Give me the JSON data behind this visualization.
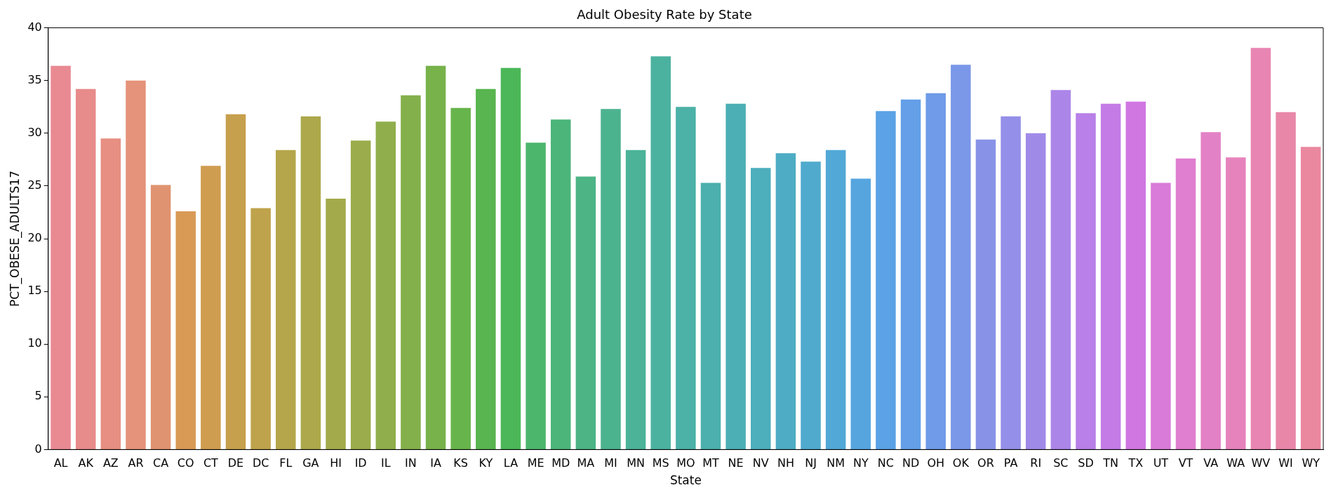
{
  "chart_data": {
    "type": "bar",
    "title": "Adult Obesity Rate by State",
    "xlabel": "State",
    "ylabel": "PCT_OBESE_ADULTS17",
    "categories": [
      "AL",
      "AK",
      "AZ",
      "AR",
      "CA",
      "CO",
      "CT",
      "DE",
      "DC",
      "FL",
      "GA",
      "HI",
      "ID",
      "IL",
      "IN",
      "IA",
      "KS",
      "KY",
      "LA",
      "ME",
      "MD",
      "MA",
      "MI",
      "MN",
      "MS",
      "MO",
      "MT",
      "NE",
      "NV",
      "NH",
      "NJ",
      "NM",
      "NY",
      "NC",
      "ND",
      "OH",
      "OK",
      "OR",
      "PA",
      "RI",
      "SC",
      "SD",
      "TN",
      "TX",
      "UT",
      "VT",
      "VA",
      "WA",
      "WV",
      "WI",
      "WY"
    ],
    "values": [
      36.4,
      34.2,
      29.5,
      35.0,
      25.1,
      22.6,
      26.9,
      31.8,
      22.9,
      28.4,
      31.6,
      23.8,
      29.3,
      31.1,
      33.6,
      36.4,
      32.4,
      34.2,
      36.2,
      29.1,
      31.3,
      25.9,
      32.3,
      28.4,
      37.3,
      32.5,
      25.3,
      32.8,
      26.7,
      28.1,
      27.3,
      28.4,
      25.7,
      32.1,
      33.2,
      33.8,
      36.5,
      29.4,
      31.6,
      30.0,
      34.1,
      31.9,
      32.8,
      33.0,
      25.3,
      27.6,
      30.1,
      27.7,
      38.1,
      32.0,
      28.7
    ],
    "colors": [
      "#e98a93",
      "#e88b8b",
      "#e68f82",
      "#e5937a",
      "#e09370",
      "#d99a56",
      "#cf9d50",
      "#c6a04c",
      "#bea34c",
      "#b5a64b",
      "#aca84b",
      "#a3aa4b",
      "#9aac4b",
      "#90ae4b",
      "#84b04b",
      "#77b24b",
      "#67b44c",
      "#58b54f",
      "#4cb759",
      "#4cb66c",
      "#4cb57a",
      "#4cb485",
      "#4cb38f",
      "#4cb398",
      "#4cb2a0",
      "#4cb1a7",
      "#4cb0ae",
      "#4cafb5",
      "#4daebc",
      "#4eacc4",
      "#50aacd",
      "#52a8d6",
      "#56a5df",
      "#5ba2e6",
      "#649fe8",
      "#6f9be8",
      "#7b97e8",
      "#8893e8",
      "#948fe8",
      "#a08ae8",
      "#ac85e8",
      "#b880e8",
      "#c47be6",
      "#d077e2",
      "#d97bd8",
      "#e07ecf",
      "#e381c6",
      "#e683bd",
      "#e885b3",
      "#e987a9",
      "#ea889f"
    ],
    "ylim": [
      0,
      40
    ],
    "yticks": [
      0,
      5,
      10,
      15,
      20,
      25,
      30,
      35,
      40
    ],
    "grid": false,
    "legend": false
  }
}
